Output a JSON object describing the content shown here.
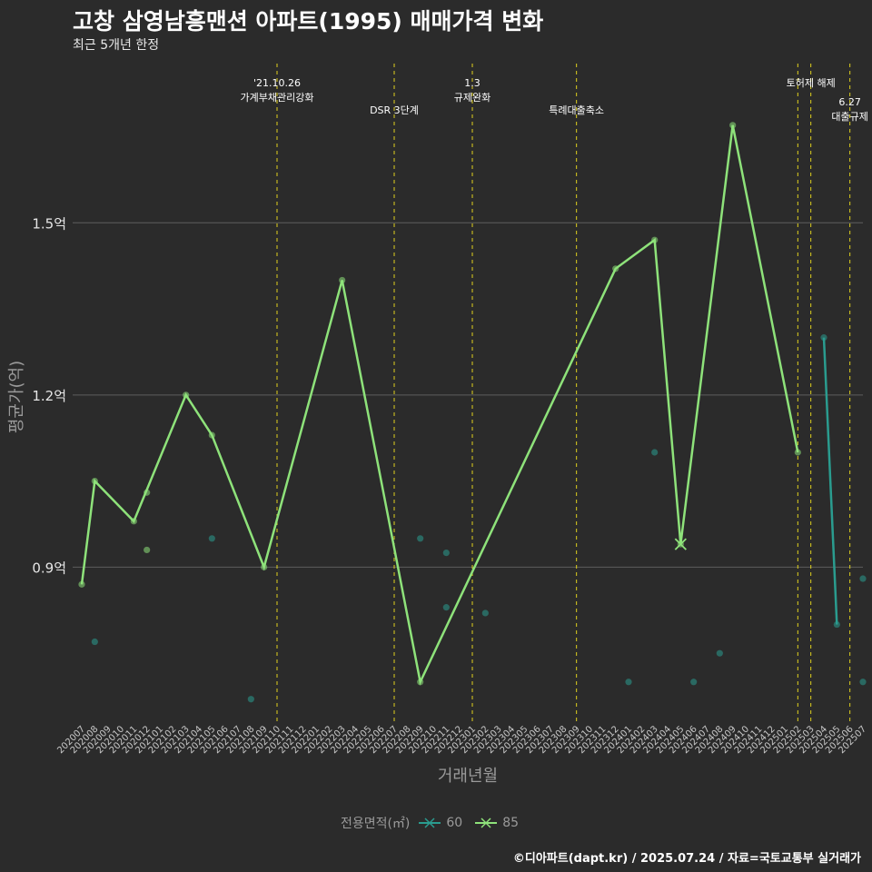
{
  "header": {
    "title": "고창 삼영남흥맨션 아파트(1995) 매매가격 변화",
    "subtitle": "최근 5개년 한정"
  },
  "caption": "©디아파트(dapt.kr) / 2025.07.24 / 자료=국토교통부 실거래가",
  "colors": {
    "background": "#2b2b2b",
    "grid": "#5e5e5e",
    "series_60": "#2a9c8f",
    "series_85": "#8ee27a",
    "event_line": "#e0d21e",
    "axis_text": "#9a9a9a"
  },
  "chart_data": {
    "type": "line",
    "xlabel": "거래년월",
    "ylabel": "평균가(억)",
    "ylim": [
      0.63,
      1.79
    ],
    "yticks": [
      {
        "value": 0.9,
        "label": "0.9억"
      },
      {
        "value": 1.2,
        "label": "1.2억"
      },
      {
        "value": 1.5,
        "label": "1.5억"
      }
    ],
    "categories": [
      "202007",
      "202008",
      "202009",
      "202010",
      "202011",
      "202012",
      "202101",
      "202102",
      "202103",
      "202104",
      "202105",
      "202106",
      "202107",
      "202108",
      "202109",
      "202110",
      "202111",
      "202112",
      "202201",
      "202202",
      "202203",
      "202204",
      "202205",
      "202206",
      "202207",
      "202208",
      "202209",
      "202210",
      "202211",
      "202212",
      "202301",
      "202302",
      "202303",
      "202304",
      "202305",
      "202306",
      "202307",
      "202308",
      "202309",
      "202310",
      "202311",
      "202312",
      "202401",
      "202402",
      "202403",
      "202404",
      "202405",
      "202406",
      "202407",
      "202408",
      "202409",
      "202410",
      "202411",
      "202412",
      "202501",
      "202502",
      "202503",
      "202504",
      "202505",
      "202506",
      "202507"
    ],
    "legend": {
      "title": "전용면적(㎡)",
      "entries": [
        "60",
        "85"
      ],
      "placement": "bottom"
    },
    "series": [
      {
        "name": "85",
        "color": "#8ee27a",
        "line": [
          [
            "202007",
            0.87
          ],
          [
            "202008",
            1.05
          ],
          [
            "202011",
            0.98
          ],
          [
            "202103",
            1.2
          ],
          [
            "202105",
            1.13
          ],
          [
            "202109",
            0.9
          ],
          [
            "202203",
            1.4
          ],
          [
            "202209",
            0.7
          ],
          [
            "202312",
            1.42
          ],
          [
            "202403",
            1.47
          ],
          [
            "202405",
            0.94
          ],
          [
            "202409",
            1.67
          ],
          [
            "202502",
            1.1
          ]
        ],
        "scatter": [
          [
            "202007",
            0.87
          ],
          [
            "202008",
            1.05
          ],
          [
            "202011",
            0.98
          ],
          [
            "202012",
            1.03
          ],
          [
            "202012",
            0.93
          ],
          [
            "202103",
            1.2
          ],
          [
            "202105",
            1.13
          ],
          [
            "202109",
            0.9
          ],
          [
            "202203",
            1.4
          ],
          [
            "202209",
            0.7
          ],
          [
            "202312",
            1.42
          ],
          [
            "202403",
            1.47
          ],
          [
            "202405",
            0.94
          ],
          [
            "202409",
            1.67
          ],
          [
            "202502",
            1.1
          ]
        ]
      },
      {
        "name": "60",
        "color": "#2a9c8f",
        "line": [
          [
            "202504",
            1.3
          ],
          [
            "202505",
            0.8
          ]
        ],
        "scatter": [
          [
            "202008",
            0.77
          ],
          [
            "202105",
            0.95
          ],
          [
            "202108",
            0.67
          ],
          [
            "202209",
            0.95
          ],
          [
            "202211",
            0.83
          ],
          [
            "202211",
            0.925
          ],
          [
            "202302",
            0.82
          ],
          [
            "202401",
            0.7
          ],
          [
            "202403",
            1.1
          ],
          [
            "202406",
            0.7
          ],
          [
            "202408",
            0.75
          ],
          [
            "202504",
            1.3
          ],
          [
            "202505",
            0.8
          ],
          [
            "202507",
            0.88
          ],
          [
            "202507",
            0.7
          ]
        ]
      }
    ],
    "events": [
      {
        "x": "202110",
        "label_lines": [
          "'21.10.26",
          "가계부채관리강화"
        ],
        "label_level": "high"
      },
      {
        "x": "202207",
        "label_lines": [
          "DSR 3단계"
        ],
        "label_level": "low"
      },
      {
        "x": "202301",
        "label_lines": [
          "1.3",
          "규제완화"
        ],
        "label_level": "high"
      },
      {
        "x": "202309",
        "label_lines": [
          "특례대출축소"
        ],
        "label_level": "low"
      },
      {
        "x": "202502",
        "label_lines": [],
        "label_level": "high"
      },
      {
        "x": "202503",
        "label_lines": [
          "토허제 해제"
        ],
        "label_level": "high"
      },
      {
        "x": "202506",
        "label_lines": [
          "6.27",
          "대출규제"
        ],
        "label_level": "mid"
      }
    ],
    "grid": true
  }
}
